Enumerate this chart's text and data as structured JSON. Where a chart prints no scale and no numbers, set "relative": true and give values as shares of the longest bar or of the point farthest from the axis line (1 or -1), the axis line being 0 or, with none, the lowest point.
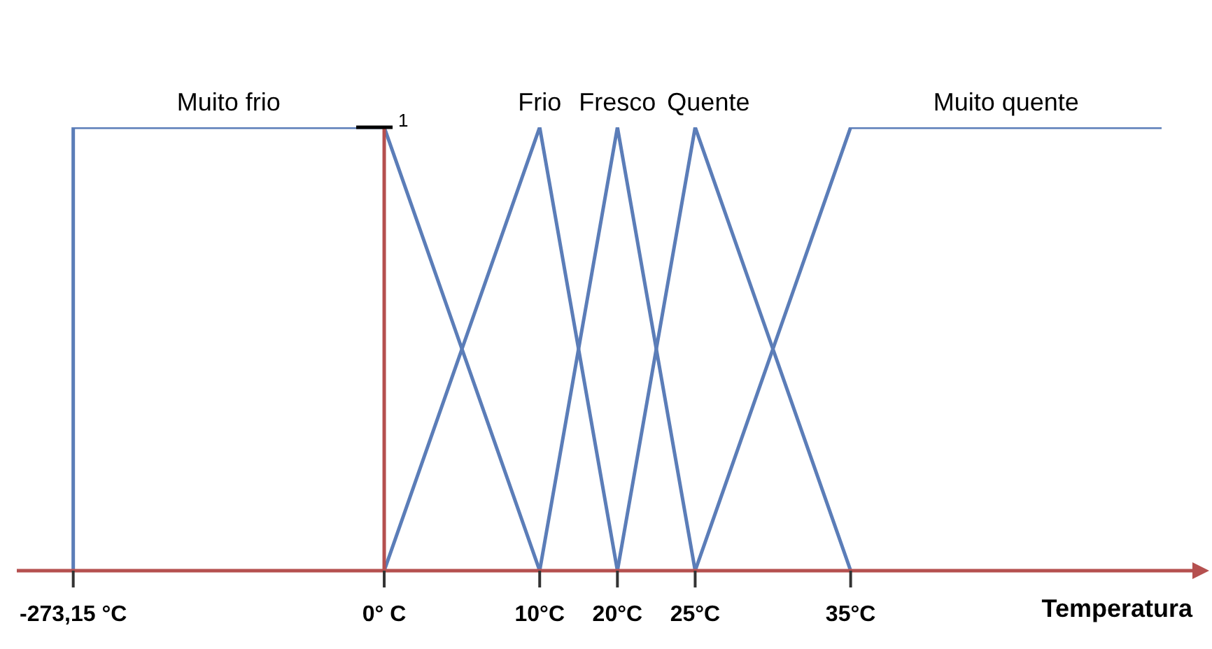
{
  "chart_data": {
    "type": "line",
    "relative": true,
    "xlabel": "Temperatura",
    "categories": [
      "-273,15 °C",
      null,
      null,
      null,
      "0° C",
      null,
      "10°C",
      "20°C",
      "25°C",
      null,
      "35°C",
      null,
      null,
      null,
      null
    ],
    "series": [
      {
        "name": "Muito frio",
        "color": "#5b7db8",
        "values": [
          1,
          1,
          1,
          1,
          1,
          0.5,
          0,
          null,
          null,
          null,
          null,
          null,
          null,
          null,
          null
        ]
      },
      {
        "name": "Frio",
        "color": "#5b7db8",
        "values": [
          null,
          null,
          null,
          null,
          0,
          0.5,
          1,
          0,
          null,
          null,
          null,
          null,
          null,
          null,
          null
        ]
      },
      {
        "name": "Fresco",
        "color": "#5b7db8",
        "values": [
          null,
          null,
          null,
          null,
          null,
          null,
          0,
          1,
          0,
          null,
          null,
          null,
          null,
          null,
          null
        ]
      },
      {
        "name": "Quente",
        "color": "#5b7db8",
        "values": [
          null,
          null,
          null,
          null,
          null,
          null,
          null,
          0,
          1,
          0.5,
          0,
          null,
          null,
          null,
          null
        ]
      },
      {
        "name": "Muito quente",
        "color": "#5b7db8",
        "values": [
          null,
          null,
          null,
          null,
          null,
          null,
          null,
          null,
          0,
          0.5,
          1,
          1,
          1,
          1,
          1
        ]
      }
    ],
    "ref_lines": [
      {
        "axis": "x",
        "value": "-273,15 °C",
        "color": "#5b7db8"
      },
      {
        "axis": "x",
        "value": "0° C",
        "color": "#b5504f"
      }
    ],
    "annotations": [
      {
        "text": "1",
        "x": "0° C",
        "y": 1
      }
    ]
  }
}
